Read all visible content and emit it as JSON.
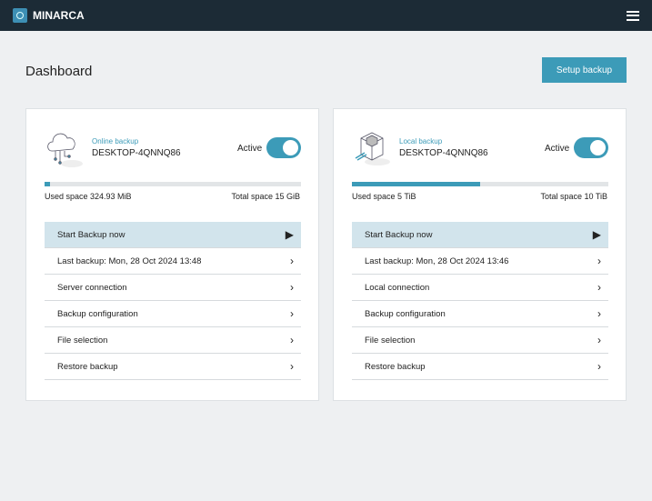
{
  "app": {
    "name": "MINARCA"
  },
  "page": {
    "title": "Dashboard",
    "setup_label": "Setup backup"
  },
  "cards": [
    {
      "kind": "Online backup",
      "host": "DESKTOP-4QNNQ86",
      "active_label": "Active",
      "active": true,
      "used": "Used space 324.93 MiB",
      "total": "Total space 15 GiB",
      "usage_percent": 2,
      "icon": "cloud-icon",
      "items": [
        "Start Backup now",
        "Last backup: Mon, 28 Oct 2024 13:48",
        "Server connection",
        "Backup configuration",
        "File selection",
        "Restore backup"
      ]
    },
    {
      "kind": "Local backup",
      "host": "DESKTOP-4QNNQ86",
      "active_label": "Active",
      "active": true,
      "used": "Used space 5 TiB",
      "total": "Total space 10 TiB",
      "usage_percent": 50,
      "icon": "drive-box-icon",
      "items": [
        "Start Backup now",
        "Last backup: Mon, 28 Oct 2024 13:46",
        "Local connection",
        "Backup configuration",
        "File selection",
        "Restore backup"
      ]
    }
  ],
  "colors": {
    "accent": "#3c9bb8",
    "header": "#1c2b36"
  }
}
